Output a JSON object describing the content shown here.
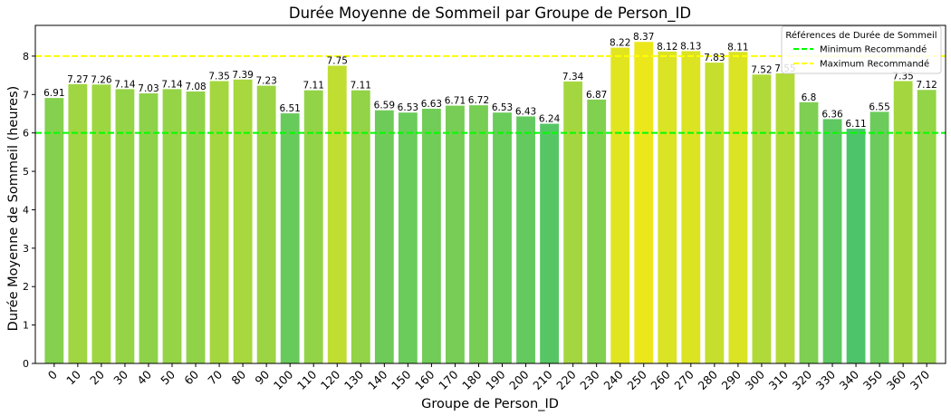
{
  "chart_data": {
    "type": "bar",
    "title": "Durée Moyenne de Sommeil par Groupe de Person_ID",
    "xlabel": "Groupe de Person_ID",
    "ylabel": "Durée Moyenne de Sommeil (heures)",
    "categories": [
      "0",
      "10",
      "20",
      "30",
      "40",
      "50",
      "60",
      "70",
      "80",
      "90",
      "100",
      "110",
      "120",
      "130",
      "140",
      "150",
      "160",
      "170",
      "180",
      "190",
      "200",
      "210",
      "220",
      "230",
      "240",
      "250",
      "260",
      "270",
      "280",
      "290",
      "300",
      "310",
      "320",
      "330",
      "340",
      "350",
      "360",
      "370"
    ],
    "values": [
      6.91,
      7.27,
      7.26,
      7.14,
      7.03,
      7.14,
      7.08,
      7.35,
      7.39,
      7.23,
      6.51,
      7.11,
      7.75,
      7.11,
      6.59,
      6.53,
      6.63,
      6.71,
      6.72,
      6.53,
      6.43,
      6.24,
      7.34,
      6.87,
      8.22,
      8.37,
      8.12,
      8.13,
      7.83,
      8.11,
      7.52,
      7.55,
      6.8,
      6.36,
      6.11,
      6.55,
      7.35,
      7.12
    ],
    "data_labels": [
      "6.91",
      "7.27",
      "7.26",
      "7.14",
      "7.03",
      "7.14",
      "7.08",
      "7.35",
      "7.39",
      "7.23",
      "6.51",
      "7.11",
      "7.75",
      "7.11",
      "6.59",
      "6.53",
      "6.63",
      "6.71",
      "6.72",
      "6.53",
      "6.43",
      "6.24",
      "7.34",
      "6.87",
      "8.22",
      "8.37",
      "8.12",
      "8.13",
      "7.83",
      "8.11",
      "7.52",
      "7.55",
      "6.8",
      "6.36",
      "6.11",
      "6.55",
      "7.35",
      "7.12"
    ],
    "y_ticks": [
      "0",
      "1",
      "2",
      "3",
      "4",
      "5",
      "6",
      "7",
      "8"
    ],
    "ylim": [
      0,
      8.8
    ],
    "grid": false,
    "reference_lines": [
      {
        "name": "Minimum Recommandé",
        "value": 6,
        "color": "#00ff00",
        "style": "dashed"
      },
      {
        "name": "Maximum Recommandé",
        "value": 8,
        "color": "#ffff00",
        "style": "dashed"
      }
    ],
    "legend": {
      "title": "Références de Durée de Sommeil",
      "placement": "top-right",
      "entries": [
        "Minimum Recommandé",
        "Maximum Recommandé"
      ]
    },
    "bar_colormap": {
      "low": {
        "value": 6.11,
        "color": "#4dc46a"
      },
      "high": {
        "value": 8.37,
        "color": "#ece71b"
      }
    }
  }
}
